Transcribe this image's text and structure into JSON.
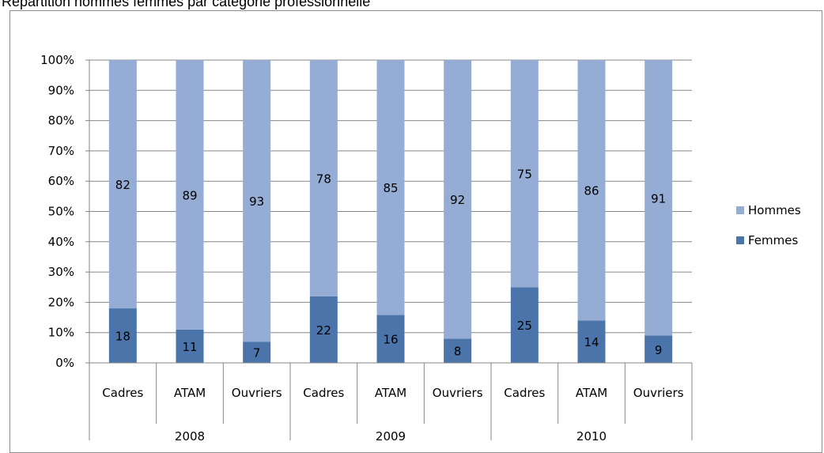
{
  "chart_data": {
    "type": "bar",
    "stacked": true,
    "percent_stacked": true,
    "title": "Répartition hommes femmes par catégorie professionnelle",
    "groups": [
      "2008",
      "2009",
      "2010"
    ],
    "categories": [
      "Cadres",
      "ATAM",
      "Ouvriers",
      "Cadres",
      "ATAM",
      "Ouvriers",
      "Cadres",
      "ATAM",
      "Ouvriers"
    ],
    "group_of_category": [
      "2008",
      "2008",
      "2008",
      "2009",
      "2009",
      "2009",
      "2010",
      "2010",
      "2010"
    ],
    "series": [
      {
        "name": "Femmes",
        "values": [
          18,
          11,
          7,
          22,
          16,
          8,
          25,
          14,
          9
        ],
        "color": "#4a74aa"
      },
      {
        "name": "Hommes",
        "values": [
          82,
          89,
          93,
          78,
          85,
          92,
          75,
          86,
          91
        ],
        "color": "#95acd4"
      }
    ],
    "y_ticks": [
      "0%",
      "10%",
      "20%",
      "30%",
      "40%",
      "50%",
      "60%",
      "70%",
      "80%",
      "90%",
      "100%"
    ],
    "ylim": [
      0,
      100
    ],
    "grid": true,
    "legend_position": "right",
    "legend_order": [
      "Hommes",
      "Femmes"
    ]
  }
}
